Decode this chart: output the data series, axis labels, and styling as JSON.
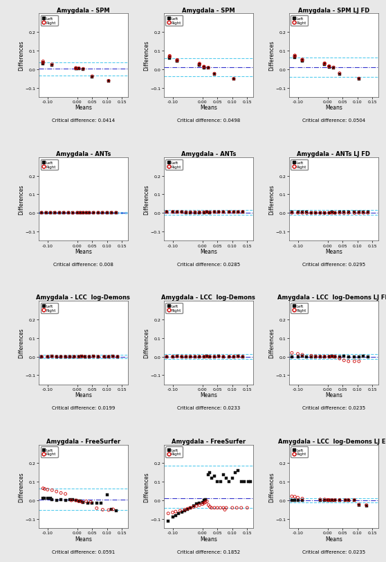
{
  "subplots": [
    {
      "title": "Amygdala - SPM",
      "critical_diff": "0.0414",
      "mean_line": 0.002,
      "upper_loa": 0.038,
      "lower_loa": -0.034,
      "ylim": [
        -0.15,
        0.3
      ],
      "yticks": [
        -0.1,
        0.0,
        0.1,
        0.2
      ],
      "legend_loc": "upper left",
      "left_x": [
        -0.115,
        -0.115,
        -0.085,
        -0.005,
        -0.005,
        0.005,
        0.02,
        0.05,
        0.105
      ],
      "left_y": [
        0.038,
        0.03,
        0.022,
        0.004,
        0.002,
        0.002,
        0.0,
        -0.042,
        -0.065
      ],
      "right_x": [
        -0.115,
        -0.115,
        -0.085,
        -0.005,
        -0.005,
        0.005,
        0.02,
        0.05,
        0.105
      ],
      "right_y": [
        0.042,
        0.035,
        0.026,
        0.007,
        0.004,
        0.005,
        0.002,
        -0.038,
        -0.062
      ]
    },
    {
      "title": "Amygdala - SPM",
      "critical_diff": "0.0498",
      "mean_line": 0.01,
      "upper_loa": 0.06,
      "lower_loa": -0.04,
      "ylim": [
        -0.15,
        0.3
      ],
      "yticks": [
        -0.1,
        0.0,
        0.1,
        0.2
      ],
      "legend_loc": "upper left",
      "left_x": [
        -0.11,
        -0.11,
        -0.085,
        -0.085,
        -0.01,
        -0.01,
        0.005,
        0.005,
        0.02,
        0.04,
        0.105
      ],
      "left_y": [
        0.065,
        0.06,
        0.045,
        0.042,
        0.025,
        0.022,
        0.01,
        0.008,
        0.005,
        -0.028,
        -0.055
      ],
      "right_x": [
        -0.11,
        -0.11,
        -0.085,
        -0.085,
        -0.01,
        -0.01,
        0.005,
        0.005,
        0.02,
        0.04,
        0.105
      ],
      "right_y": [
        0.072,
        0.067,
        0.05,
        0.047,
        0.03,
        0.027,
        0.014,
        0.012,
        0.008,
        -0.024,
        -0.052
      ]
    },
    {
      "title": "Amygdala - SPM LJ FD",
      "critical_diff": "0.0504",
      "mean_line": 0.01,
      "upper_loa": 0.062,
      "lower_loa": -0.042,
      "ylim": [
        -0.15,
        0.3
      ],
      "yticks": [
        -0.1,
        0.0,
        0.1,
        0.2
      ],
      "legend_loc": "upper left",
      "left_x": [
        -0.11,
        -0.11,
        -0.085,
        -0.085,
        -0.01,
        -0.01,
        0.005,
        0.005,
        0.02,
        0.04,
        0.105
      ],
      "left_y": [
        0.068,
        0.063,
        0.047,
        0.044,
        0.027,
        0.024,
        0.012,
        0.01,
        0.007,
        -0.026,
        -0.053
      ],
      "right_x": [
        -0.11,
        -0.11,
        -0.085,
        -0.085,
        -0.01,
        -0.01,
        0.005,
        0.005,
        0.02,
        0.04,
        0.105
      ],
      "right_y": [
        0.074,
        0.069,
        0.052,
        0.049,
        0.032,
        0.029,
        0.016,
        0.014,
        0.01,
        -0.022,
        -0.05
      ]
    },
    {
      "title": "Amygdala - ANTs",
      "critical_diff": "0.008",
      "mean_line": 0.0,
      "upper_loa": 0.004,
      "lower_loa": -0.004,
      "ylim": [
        -0.15,
        0.3
      ],
      "yticks": [
        -0.1,
        0.0,
        0.1,
        0.2
      ],
      "legend_loc": "upper left",
      "left_x": [
        -0.12,
        -0.105,
        -0.09,
        -0.075,
        -0.06,
        -0.045,
        -0.03,
        -0.015,
        0.0,
        0.01,
        0.02,
        0.03,
        0.04,
        0.055,
        0.07,
        0.085,
        0.1,
        0.115,
        0.13
      ],
      "left_y": [
        0.0,
        0.0,
        0.001,
        0.0,
        0.0,
        0.0,
        0.0,
        0.0,
        0.0,
        0.0,
        0.001,
        0.0,
        0.0,
        0.001,
        0.0,
        0.0,
        0.001,
        0.0,
        0.0
      ],
      "right_x": [
        -0.12,
        -0.105,
        -0.09,
        -0.075,
        -0.06,
        -0.045,
        -0.03,
        -0.015,
        0.0,
        0.01,
        0.02,
        0.03,
        0.04,
        0.055,
        0.07,
        0.085,
        0.1,
        0.115,
        0.13
      ],
      "right_y": [
        0.001,
        0.001,
        0.001,
        0.001,
        0.001,
        0.001,
        0.001,
        0.0,
        0.001,
        0.001,
        0.001,
        0.001,
        0.001,
        0.001,
        0.001,
        0.001,
        0.001,
        0.001,
        0.001
      ]
    },
    {
      "title": "Amygdala - ANTs",
      "critical_diff": "0.0285",
      "mean_line": 0.002,
      "upper_loa": 0.016,
      "lower_loa": -0.012,
      "ylim": [
        -0.15,
        0.3
      ],
      "yticks": [
        -0.1,
        0.0,
        0.1,
        0.2
      ],
      "legend_loc": "upper left",
      "left_x": [
        -0.12,
        -0.1,
        -0.085,
        -0.07,
        -0.055,
        -0.04,
        -0.025,
        -0.01,
        0.005,
        0.015,
        0.025,
        0.04,
        0.055,
        0.07,
        0.09,
        0.105,
        0.12,
        0.135
      ],
      "left_y": [
        0.005,
        0.004,
        0.003,
        0.003,
        0.002,
        0.002,
        0.002,
        0.002,
        0.002,
        0.003,
        0.002,
        0.003,
        0.003,
        0.003,
        0.003,
        0.003,
        0.003,
        0.004
      ],
      "right_x": [
        -0.12,
        -0.1,
        -0.085,
        -0.07,
        -0.055,
        -0.04,
        -0.025,
        -0.01,
        0.005,
        0.015,
        0.025,
        0.04,
        0.055,
        0.07,
        0.09,
        0.105,
        0.12,
        0.135
      ],
      "right_y": [
        0.006,
        0.006,
        0.005,
        0.005,
        0.004,
        0.004,
        0.004,
        0.004,
        0.004,
        0.005,
        0.004,
        0.005,
        0.005,
        0.005,
        0.005,
        0.005,
        0.005,
        0.006
      ]
    },
    {
      "title": "Amygdala - ANTs LJ FD",
      "critical_diff": "0.0295",
      "mean_line": 0.002,
      "upper_loa": 0.016,
      "lower_loa": -0.012,
      "ylim": [
        -0.15,
        0.3
      ],
      "yticks": [
        -0.1,
        0.0,
        0.1,
        0.2
      ],
      "legend_loc": "upper left",
      "left_x": [
        -0.12,
        -0.1,
        -0.085,
        -0.07,
        -0.055,
        -0.04,
        -0.025,
        -0.01,
        0.005,
        0.015,
        0.025,
        0.04,
        0.055,
        0.07,
        0.09,
        0.105,
        0.12,
        0.135
      ],
      "left_y": [
        0.005,
        0.004,
        0.003,
        0.003,
        0.002,
        0.002,
        0.002,
        0.002,
        0.002,
        0.003,
        0.002,
        0.003,
        0.003,
        0.003,
        0.004,
        0.003,
        0.003,
        0.004
      ],
      "right_x": [
        -0.12,
        -0.1,
        -0.085,
        -0.07,
        -0.055,
        -0.04,
        -0.025,
        -0.01,
        0.005,
        0.015,
        0.025,
        0.04,
        0.055,
        0.07,
        0.09,
        0.105,
        0.12,
        0.135
      ],
      "right_y": [
        0.0,
        0.0,
        0.0,
        -0.001,
        0.0,
        0.0,
        0.0,
        -0.001,
        0.0,
        0.0,
        0.0,
        0.0,
        -0.001,
        0.0,
        -0.001,
        0.0,
        0.0,
        0.0
      ]
    },
    {
      "title": "Amygdala - LCC  log-Demons",
      "critical_diff": "0.0199",
      "mean_line": 0.0,
      "upper_loa": 0.01,
      "lower_loa": -0.01,
      "ylim": [
        -0.15,
        0.3
      ],
      "yticks": [
        -0.1,
        0.0,
        0.1,
        0.2
      ],
      "legend_loc": "upper left",
      "left_x": [
        -0.12,
        -0.1,
        -0.085,
        -0.07,
        -0.055,
        -0.04,
        -0.025,
        -0.01,
        0.005,
        0.015,
        0.025,
        0.04,
        0.055,
        0.07,
        0.09,
        0.105,
        0.12,
        0.135
      ],
      "left_y": [
        0.0,
        0.0,
        0.001,
        0.0,
        0.0,
        0.0,
        0.0,
        0.0,
        0.0,
        0.001,
        0.0,
        0.0,
        0.001,
        0.0,
        0.0,
        0.0,
        0.001,
        0.0
      ],
      "right_x": [
        -0.12,
        -0.1,
        -0.085,
        -0.07,
        -0.055,
        -0.04,
        -0.025,
        -0.01,
        0.005,
        0.015,
        0.025,
        0.04,
        0.055,
        0.07,
        0.09,
        0.105,
        0.12,
        0.135
      ],
      "right_y": [
        0.0,
        0.0,
        0.001,
        0.0,
        0.0,
        0.0,
        0.0,
        0.0,
        0.0,
        0.001,
        0.0,
        0.0,
        0.001,
        0.0,
        0.0,
        0.0,
        0.001,
        0.0
      ]
    },
    {
      "title": "Amygdala - LCC  log-Demons",
      "critical_diff": "0.0233",
      "mean_line": 0.0,
      "upper_loa": 0.012,
      "lower_loa": -0.012,
      "ylim": [
        -0.15,
        0.3
      ],
      "yticks": [
        -0.1,
        0.0,
        0.1,
        0.2
      ],
      "legend_loc": "upper left",
      "left_x": [
        -0.12,
        -0.1,
        -0.085,
        -0.07,
        -0.055,
        -0.04,
        -0.025,
        -0.01,
        0.005,
        0.015,
        0.025,
        0.04,
        0.055,
        0.07,
        0.09,
        0.105,
        0.12,
        0.135
      ],
      "left_y": [
        0.0,
        0.0,
        0.001,
        0.0,
        0.0,
        0.0,
        0.0,
        0.0,
        0.0,
        0.001,
        0.0,
        0.0,
        0.001,
        0.0,
        0.0,
        0.0,
        0.001,
        0.0
      ],
      "right_x": [
        -0.12,
        -0.1,
        -0.085,
        -0.07,
        -0.055,
        -0.04,
        -0.025,
        -0.01,
        0.005,
        0.015,
        0.025,
        0.04,
        0.055,
        0.07,
        0.09,
        0.105,
        0.12,
        0.135
      ],
      "right_y": [
        0.0,
        0.0,
        0.001,
        0.0,
        0.0,
        0.0,
        0.0,
        0.0,
        0.0,
        0.001,
        0.0,
        0.0,
        0.001,
        0.0,
        0.0,
        0.0,
        0.001,
        0.0
      ]
    },
    {
      "title": "Amygdala - LCC  log-Demons LJ FD",
      "critical_diff": "0.0235",
      "mean_line": 0.0,
      "upper_loa": 0.012,
      "lower_loa": -0.012,
      "ylim": [
        -0.15,
        0.3
      ],
      "yticks": [
        -0.1,
        0.0,
        0.1,
        0.2
      ],
      "legend_loc": "upper left",
      "left_x": [
        -0.12,
        -0.1,
        -0.085,
        -0.07,
        -0.055,
        -0.04,
        -0.025,
        -0.01,
        0.005,
        0.015,
        0.025,
        0.04,
        0.055,
        0.07,
        0.09,
        0.105,
        0.12,
        0.135
      ],
      "left_y": [
        0.0,
        0.0,
        0.001,
        0.0,
        0.0,
        0.0,
        0.0,
        0.0,
        0.0,
        0.001,
        0.0,
        0.0,
        0.001,
        0.0,
        0.0,
        0.0,
        0.001,
        0.0
      ],
      "right_x": [
        -0.12,
        -0.1,
        -0.085,
        -0.055,
        -0.04,
        -0.025,
        -0.01,
        0.005,
        0.015,
        0.025,
        0.04,
        0.055,
        0.07,
        0.09,
        0.105
      ],
      "right_y": [
        0.02,
        0.015,
        0.01,
        0.005,
        0.002,
        0.001,
        0.001,
        0.001,
        0.001,
        0.001,
        -0.01,
        -0.02,
        -0.025,
        -0.025,
        -0.025
      ]
    },
    {
      "title": "Amygdala - FreeSurfer",
      "critical_diff": "0.0591",
      "mean_line": 0.005,
      "upper_loa": 0.062,
      "lower_loa": -0.052,
      "ylim": [
        -0.15,
        0.3
      ],
      "yticks": [
        -0.1,
        0.0,
        0.1,
        0.2
      ],
      "legend_loc": "upper left",
      "left_x": [
        -0.115,
        -0.11,
        -0.1,
        -0.09,
        -0.085,
        -0.07,
        -0.055,
        -0.04,
        -0.025,
        -0.015,
        -0.005,
        0.005,
        0.01,
        0.02,
        0.035,
        0.05,
        0.065,
        0.08,
        0.1,
        0.115,
        0.13
      ],
      "left_y": [
        0.01,
        0.01,
        0.01,
        0.01,
        0.005,
        0.0,
        0.005,
        0.002,
        0.005,
        0.005,
        0.002,
        -0.002,
        -0.005,
        -0.01,
        -0.015,
        -0.015,
        -0.015,
        -0.015,
        0.03,
        -0.05,
        -0.055
      ],
      "right_x": [
        -0.115,
        -0.11,
        -0.1,
        -0.085,
        -0.07,
        -0.055,
        -0.04,
        -0.02,
        -0.005,
        0.005,
        0.015,
        0.03,
        0.045,
        0.065,
        0.085,
        0.105,
        0.12
      ],
      "right_y": [
        0.065,
        0.062,
        0.058,
        0.055,
        0.048,
        0.04,
        0.035,
        0.0,
        0.0,
        -0.005,
        -0.008,
        -0.005,
        -0.008,
        -0.042,
        -0.05,
        -0.052,
        -0.048
      ]
    },
    {
      "title": "Amygdala - FreeSurfer",
      "critical_diff": "0.1852",
      "mean_line": 0.01,
      "upper_loa": 0.185,
      "lower_loa": -0.04,
      "ylim": [
        -0.15,
        0.3
      ],
      "yticks": [
        -0.1,
        0.0,
        0.1,
        0.2
      ],
      "legend_loc": "upper left",
      "left_x": [
        -0.115,
        -0.1,
        -0.09,
        -0.08,
        -0.07,
        -0.06,
        -0.05,
        -0.04,
        -0.03,
        -0.02,
        -0.01,
        0.0,
        0.005,
        0.01,
        0.02,
        0.025,
        0.03,
        0.04,
        0.05,
        0.06,
        0.07,
        0.08,
        0.09,
        0.1,
        0.11,
        0.12,
        0.13,
        0.14,
        0.155,
        0.16
      ],
      "left_y": [
        -0.11,
        -0.09,
        -0.08,
        -0.07,
        -0.065,
        -0.055,
        -0.05,
        -0.04,
        -0.03,
        -0.02,
        -0.015,
        -0.01,
        0.0,
        0.005,
        0.14,
        0.15,
        0.12,
        0.13,
        0.1,
        0.1,
        0.14,
        0.12,
        0.1,
        0.12,
        0.15,
        0.16,
        0.1,
        0.1,
        0.1,
        0.1
      ],
      "right_x": [
        -0.115,
        -0.1,
        -0.09,
        -0.075,
        -0.06,
        -0.05,
        -0.04,
        -0.03,
        -0.02,
        -0.01,
        0.0,
        0.005,
        0.01,
        0.015,
        0.02,
        0.025,
        0.03,
        0.04,
        0.05,
        0.06,
        0.07,
        0.075,
        0.08,
        0.1,
        0.115,
        0.13,
        0.15
      ],
      "right_y": [
        -0.07,
        -0.065,
        -0.06,
        -0.055,
        -0.05,
        -0.045,
        -0.04,
        -0.035,
        -0.03,
        -0.025,
        -0.02,
        -0.015,
        -0.01,
        -0.005,
        -0.025,
        -0.035,
        -0.04,
        -0.04,
        -0.04,
        -0.04,
        -0.04,
        -0.05,
        -0.04,
        -0.04,
        -0.04,
        -0.04,
        -0.04
      ]
    },
    {
      "title": "Amygdala - LCC  log-Demons LJ EF",
      "critical_diff": "0.0235",
      "mean_line": 0.0,
      "upper_loa": 0.012,
      "lower_loa": -0.012,
      "ylim": [
        -0.15,
        0.3
      ],
      "yticks": [
        -0.1,
        0.0,
        0.1,
        0.2
      ],
      "legend_loc": "upper left",
      "left_x": [
        -0.12,
        -0.11,
        -0.1,
        -0.085,
        -0.025,
        -0.01,
        0.0,
        0.005,
        0.015,
        0.025,
        0.04,
        0.06,
        0.07,
        0.09,
        0.105,
        0.13
      ],
      "left_y": [
        0.0,
        0.0,
        0.0,
        0.0,
        0.0,
        0.0,
        0.0,
        0.0,
        0.0,
        0.0,
        0.0,
        0.0,
        0.0,
        0.0,
        -0.025,
        -0.03
      ],
      "right_x": [
        -0.12,
        -0.11,
        -0.1,
        -0.085,
        -0.025,
        -0.01,
        0.0,
        0.005,
        0.015,
        0.025,
        0.04,
        0.06,
        0.07,
        0.09,
        0.105,
        0.13
      ],
      "right_y": [
        0.022,
        0.02,
        0.015,
        0.01,
        0.005,
        0.005,
        0.002,
        0.002,
        0.002,
        0.002,
        0.002,
        0.002,
        0.002,
        0.002,
        -0.022,
        -0.025
      ]
    }
  ],
  "xlim": [
    -0.13,
    0.17
  ],
  "xticks": [
    -0.1,
    0.0,
    0.05,
    0.1,
    0.15
  ],
  "xticklabels": [
    "-0.10",
    "0.00",
    "0.05",
    "0.10",
    "0.15"
  ],
  "xlabel": "Means",
  "ylabel": "Differences",
  "mean_line_color": "#3333CC",
  "loa_dash_color": "#55CCEE",
  "loa_dot_color": "#55CCEE",
  "left_fill_color": "#111111",
  "left_edge_color": "#111111",
  "right_fill_color": "#CC0000",
  "right_edge_color": "#CC0000",
  "bg_color": "#e8e8e8",
  "plot_bg": "#ffffff"
}
